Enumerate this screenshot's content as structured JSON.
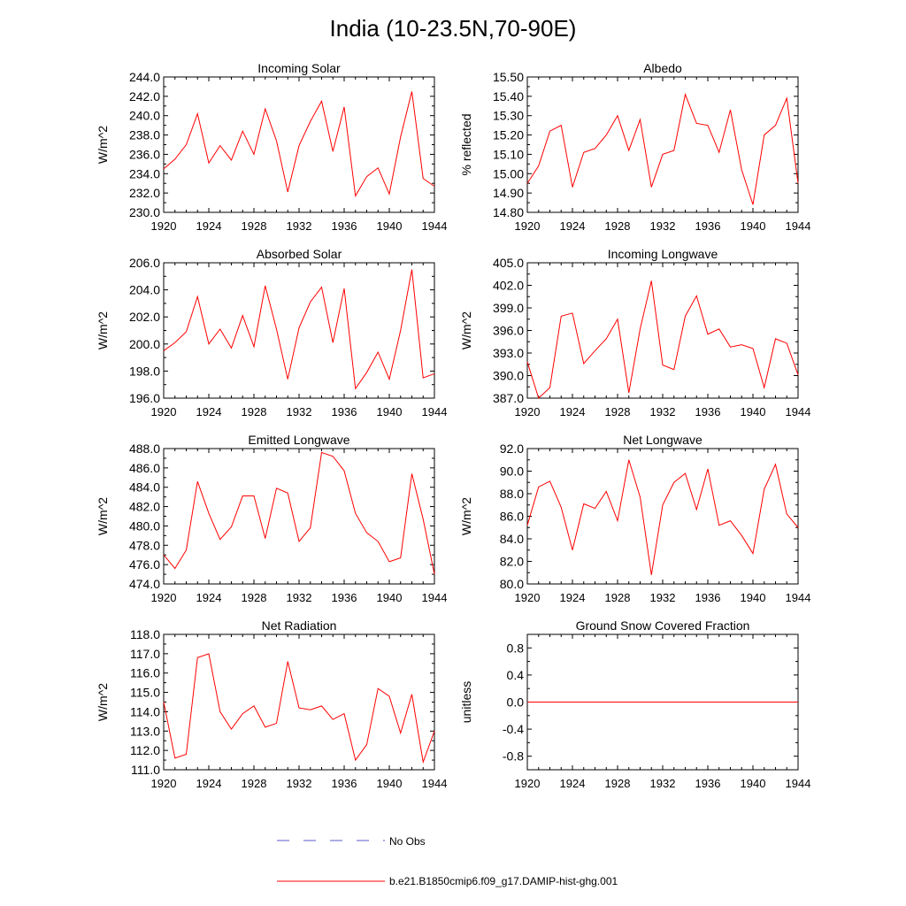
{
  "figure": {
    "title": "India (10-23.5N,70-90E)",
    "legend": {
      "obs_label": "No Obs",
      "model_label": "b.e21.B1850cmip6.f09_g17.DAMIP-hist-ghg.001"
    },
    "colors": {
      "model": "#ff0000",
      "obs": "#5a5acd",
      "axis": "#000000"
    }
  },
  "chart_data": [
    {
      "type": "line",
      "title": "Incoming Solar",
      "ylabel": "W/m^2",
      "xlabel": "",
      "xlim": [
        1920,
        1944
      ],
      "ylim": [
        230,
        244
      ],
      "xticks": [
        1920,
        1924,
        1928,
        1932,
        1936,
        1940,
        1944
      ],
      "yticks": [
        230,
        232,
        234,
        236,
        238,
        240,
        242,
        244
      ],
      "ytick_decimals": 1,
      "series": [
        {
          "name": "b.e21.B1850cmip6.f09_g17.DAMIP-hist-ghg.001",
          "x": [
            1920,
            1921,
            1922,
            1923,
            1924,
            1925,
            1926,
            1927,
            1928,
            1929,
            1930,
            1931,
            1932,
            1933,
            1934,
            1935,
            1936,
            1937,
            1938,
            1939,
            1940,
            1941,
            1942,
            1943,
            1944
          ],
          "y": [
            234.5,
            235.5,
            237.0,
            240.2,
            235.1,
            236.9,
            235.4,
            238.4,
            236.0,
            240.7,
            237.4,
            232.1,
            236.9,
            239.4,
            241.5,
            236.3,
            240.9,
            231.7,
            233.7,
            234.6,
            231.9,
            237.8,
            242.5,
            233.5,
            232.7
          ]
        }
      ]
    },
    {
      "type": "line",
      "title": "Albedo",
      "ylabel": "% reflected",
      "xlabel": "",
      "xlim": [
        1920,
        1944
      ],
      "ylim": [
        14.8,
        15.5
      ],
      "xticks": [
        1920,
        1924,
        1928,
        1932,
        1936,
        1940,
        1944
      ],
      "yticks": [
        14.8,
        14.9,
        15.0,
        15.1,
        15.2,
        15.3,
        15.4,
        15.5
      ],
      "ytick_decimals": 2,
      "series": [
        {
          "name": "b.e21.B1850cmip6.f09_g17.DAMIP-hist-ghg.001",
          "x": [
            1920,
            1921,
            1922,
            1923,
            1924,
            1925,
            1926,
            1927,
            1928,
            1929,
            1930,
            1931,
            1932,
            1933,
            1934,
            1935,
            1936,
            1937,
            1938,
            1939,
            1940,
            1941,
            1942,
            1943,
            1944
          ],
          "y": [
            14.95,
            15.04,
            15.22,
            15.25,
            14.93,
            15.11,
            15.13,
            15.2,
            15.3,
            15.12,
            15.28,
            14.93,
            15.1,
            15.12,
            15.41,
            15.26,
            15.25,
            15.11,
            15.33,
            15.02,
            14.84,
            15.2,
            15.25,
            15.39,
            14.95
          ]
        }
      ]
    },
    {
      "type": "line",
      "title": "Absorbed Solar",
      "ylabel": "W/m^2",
      "xlabel": "",
      "xlim": [
        1920,
        1944
      ],
      "ylim": [
        196,
        206
      ],
      "xticks": [
        1920,
        1924,
        1928,
        1932,
        1936,
        1940,
        1944
      ],
      "yticks": [
        196,
        198,
        200,
        202,
        204,
        206
      ],
      "ytick_decimals": 1,
      "series": [
        {
          "name": "b.e21.B1850cmip6.f09_g17.DAMIP-hist-ghg.001",
          "x": [
            1920,
            1921,
            1922,
            1923,
            1924,
            1925,
            1926,
            1927,
            1928,
            1929,
            1930,
            1931,
            1932,
            1933,
            1934,
            1935,
            1936,
            1937,
            1938,
            1939,
            1940,
            1941,
            1942,
            1943,
            1944
          ],
          "y": [
            199.5,
            200.1,
            200.9,
            203.5,
            200.0,
            201.1,
            199.7,
            202.1,
            199.8,
            204.3,
            201.1,
            197.4,
            201.2,
            203.1,
            204.2,
            200.1,
            204.1,
            196.7,
            197.9,
            199.4,
            197.4,
            201.0,
            205.5,
            197.5,
            197.8
          ]
        }
      ]
    },
    {
      "type": "line",
      "title": "Incoming Longwave",
      "ylabel": "W/m^2",
      "xlabel": "",
      "xlim": [
        1920,
        1944
      ],
      "ylim": [
        387,
        405
      ],
      "xticks": [
        1920,
        1924,
        1928,
        1932,
        1936,
        1940,
        1944
      ],
      "yticks": [
        387,
        390,
        393,
        396,
        399,
        402,
        405
      ],
      "ytick_decimals": 1,
      "series": [
        {
          "name": "b.e21.B1850cmip6.f09_g17.DAMIP-hist-ghg.001",
          "x": [
            1920,
            1921,
            1922,
            1923,
            1924,
            1925,
            1926,
            1927,
            1928,
            1929,
            1930,
            1931,
            1932,
            1933,
            1934,
            1935,
            1936,
            1937,
            1938,
            1939,
            1940,
            1941,
            1942,
            1943,
            1944
          ],
          "y": [
            391.8,
            387.0,
            388.4,
            397.9,
            398.3,
            391.6,
            393.3,
            394.9,
            397.5,
            387.7,
            396.2,
            402.6,
            391.4,
            390.8,
            397.9,
            400.6,
            395.5,
            396.2,
            393.8,
            394.1,
            393.6,
            388.4,
            394.9,
            394.3,
            390.1
          ]
        }
      ]
    },
    {
      "type": "line",
      "title": "Emitted Longwave",
      "ylabel": "W/m^2",
      "xlabel": "",
      "xlim": [
        1920,
        1944
      ],
      "ylim": [
        474,
        488
      ],
      "xticks": [
        1920,
        1924,
        1928,
        1932,
        1936,
        1940,
        1944
      ],
      "yticks": [
        474,
        476,
        478,
        480,
        482,
        484,
        486,
        488
      ],
      "ytick_decimals": 1,
      "series": [
        {
          "name": "b.e21.B1850cmip6.f09_g17.DAMIP-hist-ghg.001",
          "x": [
            1920,
            1921,
            1922,
            1923,
            1924,
            1925,
            1926,
            1927,
            1928,
            1929,
            1930,
            1931,
            1932,
            1933,
            1934,
            1935,
            1936,
            1937,
            1938,
            1939,
            1940,
            1941,
            1942,
            1943,
            1944
          ],
          "y": [
            477.0,
            475.6,
            477.5,
            484.6,
            481.3,
            478.6,
            479.9,
            483.1,
            483.1,
            478.7,
            483.9,
            483.4,
            478.4,
            479.8,
            487.6,
            487.2,
            485.7,
            481.3,
            479.3,
            478.4,
            476.3,
            476.7,
            485.4,
            480.7,
            475.0
          ]
        }
      ]
    },
    {
      "type": "line",
      "title": "Net Longwave",
      "ylabel": "W/m^2",
      "xlabel": "",
      "xlim": [
        1920,
        1944
      ],
      "ylim": [
        80,
        92
      ],
      "xticks": [
        1920,
        1924,
        1928,
        1932,
        1936,
        1940,
        1944
      ],
      "yticks": [
        80,
        82,
        84,
        86,
        88,
        90,
        92
      ],
      "ytick_decimals": 1,
      "series": [
        {
          "name": "b.e21.B1850cmip6.f09_g17.DAMIP-hist-ghg.001",
          "x": [
            1920,
            1921,
            1922,
            1923,
            1924,
            1925,
            1926,
            1927,
            1928,
            1929,
            1930,
            1931,
            1932,
            1933,
            1934,
            1935,
            1936,
            1937,
            1938,
            1939,
            1940,
            1941,
            1942,
            1943,
            1944
          ],
          "y": [
            85.2,
            88.6,
            89.1,
            86.8,
            83.0,
            87.1,
            86.7,
            88.2,
            85.6,
            91.0,
            87.7,
            80.8,
            87.0,
            89.0,
            89.8,
            86.6,
            90.2,
            85.2,
            85.6,
            84.3,
            82.7,
            88.4,
            90.6,
            86.2,
            85.0
          ]
        }
      ]
    },
    {
      "type": "line",
      "title": "Net Radiation",
      "ylabel": "W/m^2",
      "xlabel": "",
      "xlim": [
        1920,
        1944
      ],
      "ylim": [
        111,
        118
      ],
      "xticks": [
        1920,
        1924,
        1928,
        1932,
        1936,
        1940,
        1944
      ],
      "yticks": [
        111,
        112,
        113,
        114,
        115,
        116,
        117,
        118
      ],
      "ytick_decimals": 1,
      "series": [
        {
          "name": "b.e21.B1850cmip6.f09_g17.DAMIP-hist-ghg.001",
          "x": [
            1920,
            1921,
            1922,
            1923,
            1924,
            1925,
            1926,
            1927,
            1928,
            1929,
            1930,
            1931,
            1932,
            1933,
            1934,
            1935,
            1936,
            1937,
            1938,
            1939,
            1940,
            1941,
            1942,
            1943,
            1944
          ],
          "y": [
            114.5,
            111.6,
            111.8,
            116.8,
            117.0,
            114.0,
            113.1,
            113.9,
            114.3,
            113.2,
            113.4,
            116.6,
            114.2,
            114.1,
            114.3,
            113.6,
            113.9,
            111.5,
            112.3,
            115.2,
            114.8,
            112.9,
            114.9,
            111.4,
            113.0
          ]
        }
      ]
    },
    {
      "type": "line",
      "title": "Ground Snow Covered Fraction",
      "ylabel": "unitless",
      "xlabel": "",
      "xlim": [
        1920,
        1944
      ],
      "ylim": [
        -1.0,
        1.0
      ],
      "xticks": [
        1920,
        1924,
        1928,
        1932,
        1936,
        1940,
        1944
      ],
      "yticks": [
        -0.8,
        -0.4,
        0.0,
        0.4,
        0.8
      ],
      "ytick_decimals": 1,
      "series": [
        {
          "name": "b.e21.B1850cmip6.f09_g17.DAMIP-hist-ghg.001",
          "x": [
            1920,
            1944
          ],
          "y": [
            0.0,
            0.0
          ]
        }
      ]
    }
  ]
}
